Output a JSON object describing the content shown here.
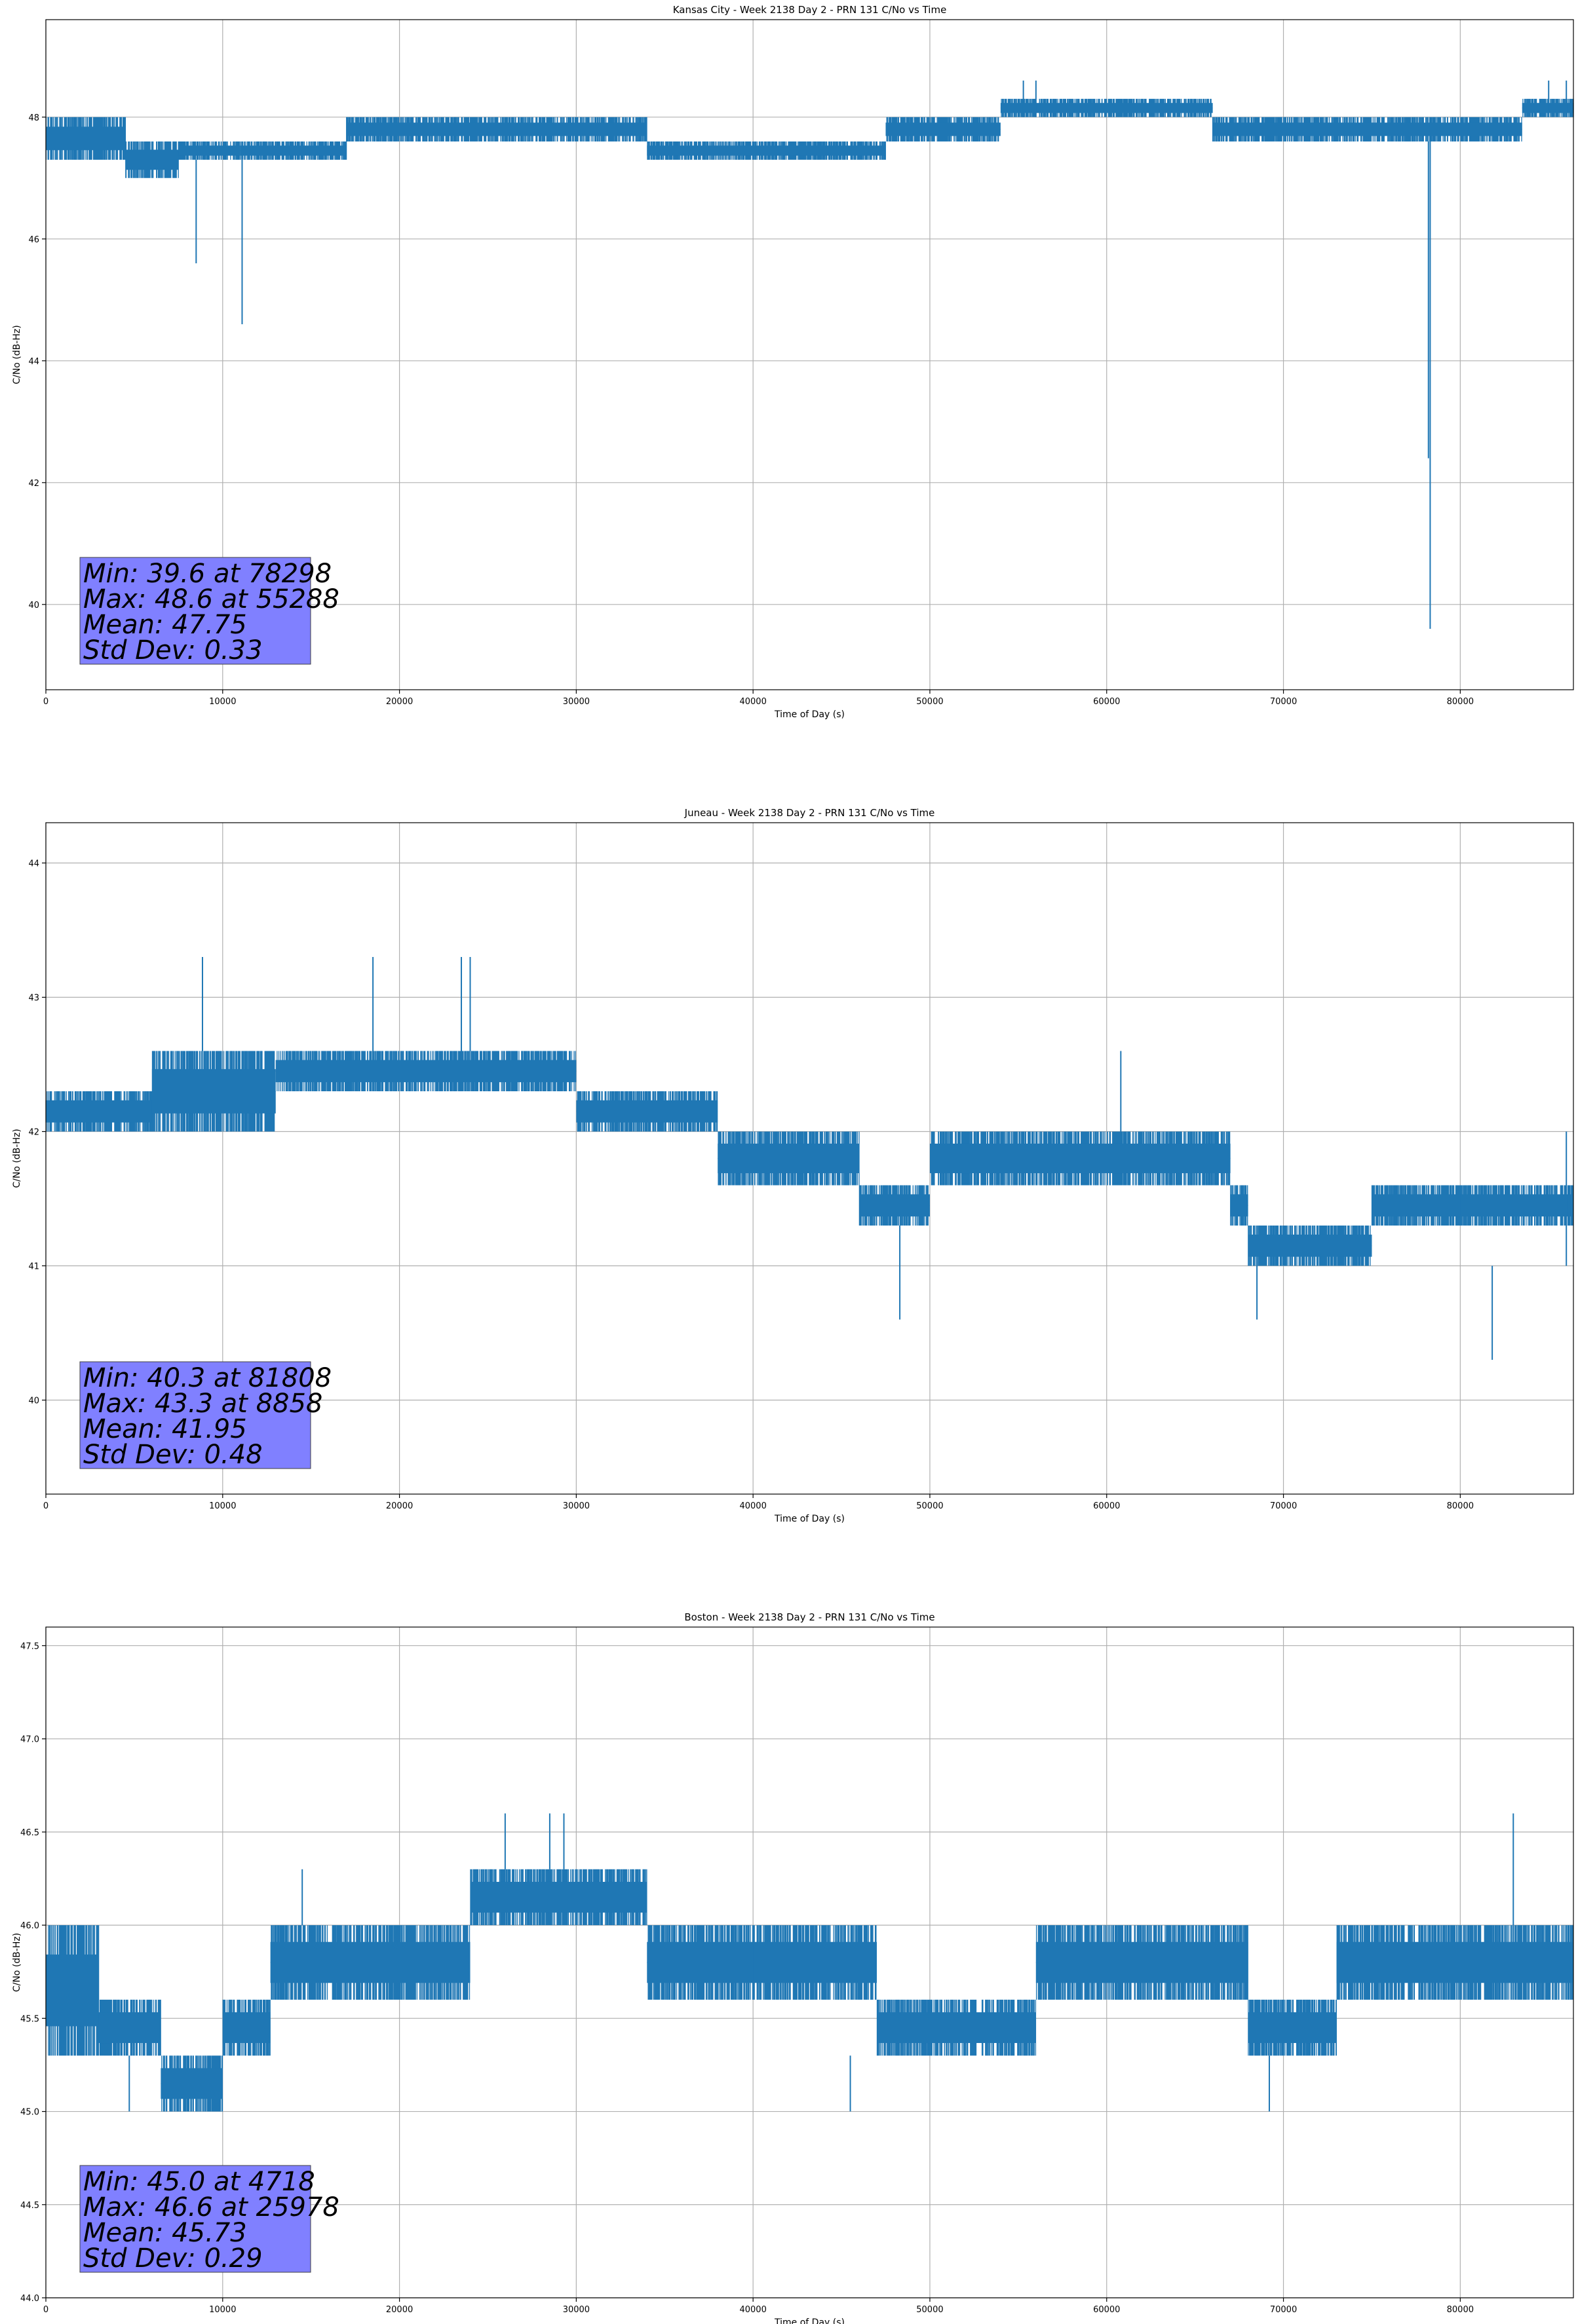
{
  "chart_data": [
    {
      "type": "line",
      "title": "Kansas City - Week 2138 Day 2 - PRN 131 C/No vs Time",
      "xlabel": "Time of Day (s)",
      "ylabel": "C/No (dB-Hz)",
      "xlim": [
        0,
        86400
      ],
      "ylim": [
        38.6,
        49.6
      ],
      "xticks": [
        0,
        10000,
        20000,
        30000,
        40000,
        50000,
        60000,
        70000,
        80000
      ],
      "yticks": [
        40,
        42,
        44,
        46,
        48
      ],
      "ytick_decimals": 0,
      "grid": true,
      "color": "#1f77b4",
      "segments": [
        {
          "x0": 0,
          "x1": 4500,
          "lo": 47.3,
          "hi": 48.0
        },
        {
          "x0": 4500,
          "x1": 7500,
          "lo": 47.0,
          "hi": 47.6
        },
        {
          "x0": 7500,
          "x1": 11000,
          "lo": 47.3,
          "hi": 47.6
        },
        {
          "x0": 11000,
          "x1": 17000,
          "lo": 47.3,
          "hi": 47.6
        },
        {
          "x0": 17000,
          "x1": 34000,
          "lo": 47.6,
          "hi": 48.0
        },
        {
          "x0": 34000,
          "x1": 47500,
          "lo": 47.3,
          "hi": 47.6
        },
        {
          "x0": 47500,
          "x1": 54000,
          "lo": 47.6,
          "hi": 48.0
        },
        {
          "x0": 54000,
          "x1": 66000,
          "lo": 48.0,
          "hi": 48.3
        },
        {
          "x0": 66000,
          "x1": 83500,
          "lo": 47.6,
          "hi": 48.0
        },
        {
          "x0": 83500,
          "x1": 86400,
          "lo": 48.0,
          "hi": 48.3
        }
      ],
      "spikes": [
        {
          "x": 8500,
          "lo": 45.6,
          "hi": 47.3
        },
        {
          "x": 11100,
          "lo": 44.6,
          "hi": 47.3
        },
        {
          "x": 78200,
          "lo": 42.4,
          "hi": 47.6
        },
        {
          "x": 78298,
          "lo": 39.6,
          "hi": 47.6
        },
        {
          "x": 55288,
          "lo": 48.0,
          "hi": 48.6
        },
        {
          "x": 56000,
          "lo": 48.0,
          "hi": 48.6
        },
        {
          "x": 85000,
          "lo": 48.0,
          "hi": 48.6
        },
        {
          "x": 86000,
          "lo": 48.0,
          "hi": 48.6
        }
      ],
      "stats": [
        "Min: 39.6 at 78298",
        "Max: 48.6 at 55288",
        "Mean: 47.75",
        "Std Dev: 0.33"
      ]
    },
    {
      "type": "line",
      "title": "Juneau - Week 2138 Day 2 - PRN 131 C/No vs Time",
      "xlabel": "Time of Day (s)",
      "ylabel": "C/No (dB-Hz)",
      "xlim": [
        0,
        86400
      ],
      "ylim": [
        39.3,
        44.3
      ],
      "xticks": [
        0,
        10000,
        20000,
        30000,
        40000,
        50000,
        60000,
        70000,
        80000
      ],
      "yticks": [
        40,
        41,
        42,
        43,
        44
      ],
      "ytick_decimals": 0,
      "grid": true,
      "color": "#1f77b4",
      "segments": [
        {
          "x0": 0,
          "x1": 6000,
          "lo": 42.0,
          "hi": 42.3
        },
        {
          "x0": 6000,
          "x1": 13000,
          "lo": 42.0,
          "hi": 42.6
        },
        {
          "x0": 13000,
          "x1": 30000,
          "lo": 42.3,
          "hi": 42.6
        },
        {
          "x0": 30000,
          "x1": 38000,
          "lo": 42.0,
          "hi": 42.3
        },
        {
          "x0": 38000,
          "x1": 46000,
          "lo": 41.6,
          "hi": 42.0
        },
        {
          "x0": 46000,
          "x1": 50000,
          "lo": 41.3,
          "hi": 41.6
        },
        {
          "x0": 50000,
          "x1": 67000,
          "lo": 41.6,
          "hi": 42.0
        },
        {
          "x0": 67000,
          "x1": 68000,
          "lo": 41.3,
          "hi": 41.6
        },
        {
          "x0": 68000,
          "x1": 75000,
          "lo": 41.0,
          "hi": 41.3
        },
        {
          "x0": 75000,
          "x1": 80000,
          "lo": 41.3,
          "hi": 41.6
        },
        {
          "x0": 80000,
          "x1": 86400,
          "lo": 41.3,
          "hi": 41.6
        }
      ],
      "spikes": [
        {
          "x": 8858,
          "lo": 42.6,
          "hi": 43.3
        },
        {
          "x": 18500,
          "lo": 42.6,
          "hi": 43.3
        },
        {
          "x": 23500,
          "lo": 42.6,
          "hi": 43.3
        },
        {
          "x": 24000,
          "lo": 42.6,
          "hi": 43.3
        },
        {
          "x": 48300,
          "lo": 40.6,
          "hi": 41.3
        },
        {
          "x": 60800,
          "lo": 42.0,
          "hi": 42.6
        },
        {
          "x": 68500,
          "lo": 40.6,
          "hi": 41.0
        },
        {
          "x": 81808,
          "lo": 40.3,
          "hi": 41.0
        },
        {
          "x": 86000,
          "lo": 41.0,
          "hi": 42.0
        }
      ],
      "stats": [
        "Min: 40.3 at 81808",
        "Max: 43.3 at 8858",
        "Mean: 41.95",
        "Std Dev: 0.48"
      ]
    },
    {
      "type": "line",
      "title": "Boston - Week 2138 Day 2 - PRN 131 C/No vs Time",
      "xlabel": "Time of Day (s)",
      "ylabel": "C/No (dB-Hz)",
      "xlim": [
        0,
        86400
      ],
      "ylim": [
        44.0,
        47.6
      ],
      "xticks": [
        0,
        10000,
        20000,
        30000,
        40000,
        50000,
        60000,
        70000,
        80000
      ],
      "yticks": [
        44.0,
        44.5,
        45.0,
        45.5,
        46.0,
        46.5,
        47.0,
        47.5
      ],
      "ytick_decimals": 1,
      "grid": true,
      "color": "#1f77b4",
      "segments": [
        {
          "x0": 0,
          "x1": 3000,
          "lo": 45.3,
          "hi": 46.0
        },
        {
          "x0": 3000,
          "x1": 6500,
          "lo": 45.3,
          "hi": 45.6
        },
        {
          "x0": 6500,
          "x1": 10000,
          "lo": 45.0,
          "hi": 45.3
        },
        {
          "x0": 10000,
          "x1": 12700,
          "lo": 45.3,
          "hi": 45.6
        },
        {
          "x0": 12700,
          "x1": 24000,
          "lo": 45.6,
          "hi": 46.0
        },
        {
          "x0": 24000,
          "x1": 34000,
          "lo": 46.0,
          "hi": 46.3
        },
        {
          "x0": 34000,
          "x1": 40000,
          "lo": 45.6,
          "hi": 46.0
        },
        {
          "x0": 40000,
          "x1": 47000,
          "lo": 45.6,
          "hi": 46.0
        },
        {
          "x0": 47000,
          "x1": 56000,
          "lo": 45.3,
          "hi": 45.6
        },
        {
          "x0": 56000,
          "x1": 68000,
          "lo": 45.6,
          "hi": 46.0
        },
        {
          "x0": 68000,
          "x1": 73000,
          "lo": 45.3,
          "hi": 45.6
        },
        {
          "x0": 73000,
          "x1": 86400,
          "lo": 45.6,
          "hi": 46.0
        }
      ],
      "spikes": [
        {
          "x": 4718,
          "lo": 45.0,
          "hi": 45.3
        },
        {
          "x": 14500,
          "lo": 46.0,
          "hi": 46.3
        },
        {
          "x": 25978,
          "lo": 46.3,
          "hi": 46.6
        },
        {
          "x": 28500,
          "lo": 46.3,
          "hi": 46.6
        },
        {
          "x": 29300,
          "lo": 46.3,
          "hi": 46.6
        },
        {
          "x": 45500,
          "lo": 45.0,
          "hi": 45.3
        },
        {
          "x": 69200,
          "lo": 45.0,
          "hi": 45.3
        },
        {
          "x": 83000,
          "lo": 46.0,
          "hi": 46.6
        }
      ],
      "stats": [
        "Min: 45.0 at 4718",
        "Max: 46.6 at 25978",
        "Mean: 45.73",
        "Std Dev: 0.29"
      ]
    }
  ]
}
